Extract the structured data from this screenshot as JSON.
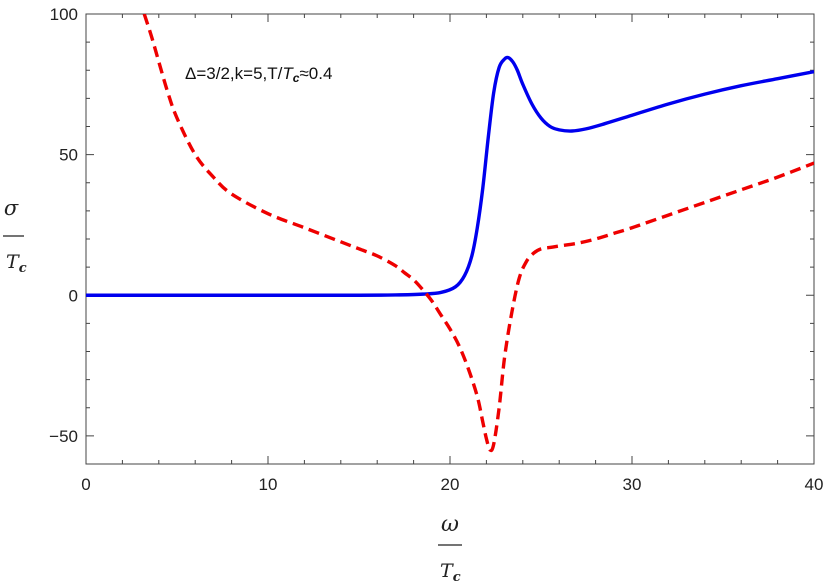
{
  "chart_data": {
    "type": "line",
    "annotation": {
      "prefix": "Δ=3/2,k=5,T/",
      "T": "T",
      "sub": "c",
      "suffix": "≈0.4"
    },
    "xlabel": {
      "symbol": "ω",
      "denominator": "T",
      "denominator_sub": "c"
    },
    "ylabel": {
      "symbol": "σ",
      "denominator": "T",
      "denominator_sub": "c"
    },
    "xlim": [
      0,
      40
    ],
    "ylim": [
      -60,
      100
    ],
    "x_ticks": [
      0,
      10,
      20,
      30,
      40
    ],
    "y_ticks": [
      -50,
      0,
      50,
      100
    ],
    "x_tick_labels": [
      "0",
      "10",
      "20",
      "30",
      "40"
    ],
    "y_tick_labels": [
      "-50",
      "0",
      "50",
      "100"
    ],
    "grid": false,
    "series": [
      {
        "style": "solid",
        "color": "#0000ee",
        "x": [
          0,
          5,
          10,
          15,
          17,
          18.5,
          19.5,
          20.3,
          20.8,
          21.2,
          21.5,
          21.8,
          22.1,
          22.4,
          22.7,
          23.0,
          23.2,
          23.45,
          23.7,
          24.0,
          24.5,
          25.0,
          25.5,
          26.0,
          26.7,
          27.5,
          28.5,
          30,
          32,
          34,
          36,
          38,
          40
        ],
        "y": [
          0,
          0,
          0,
          0,
          0.1,
          0.4,
          1,
          3,
          7,
          14,
          24,
          38,
          56,
          72,
          81,
          84,
          84.5,
          83,
          80,
          75,
          68,
          63,
          60,
          58.8,
          58.4,
          59.2,
          61,
          64,
          68,
          71.5,
          74.5,
          77,
          79.5
        ]
      },
      {
        "style": "dashed",
        "color": "#ee0000",
        "x": [
          3.2,
          3.6,
          4,
          4.5,
          5,
          6,
          7,
          8,
          10,
          12,
          14,
          15,
          16,
          17,
          17.5,
          18,
          18.5,
          19,
          19.5,
          20,
          20.5,
          21,
          21.5,
          21.8,
          22.0,
          22.2,
          22.4,
          22.7,
          23.0,
          23.4,
          23.8,
          24.2,
          24.6,
          25.0,
          25.5,
          26,
          27,
          28,
          29,
          30,
          32,
          34,
          36,
          38,
          40
        ],
        "y": [
          100,
          92,
          83,
          72,
          63,
          50,
          42,
          36,
          29,
          24,
          19,
          16.5,
          14,
          10.5,
          8,
          5.5,
          2,
          -2,
          -7,
          -12,
          -18,
          -26,
          -36,
          -45,
          -51,
          -55,
          -53,
          -40,
          -22,
          -6,
          6,
          12,
          15,
          16.5,
          17,
          17.5,
          18.5,
          20,
          22,
          24,
          28.5,
          33,
          37.5,
          42,
          47
        ]
      }
    ]
  }
}
